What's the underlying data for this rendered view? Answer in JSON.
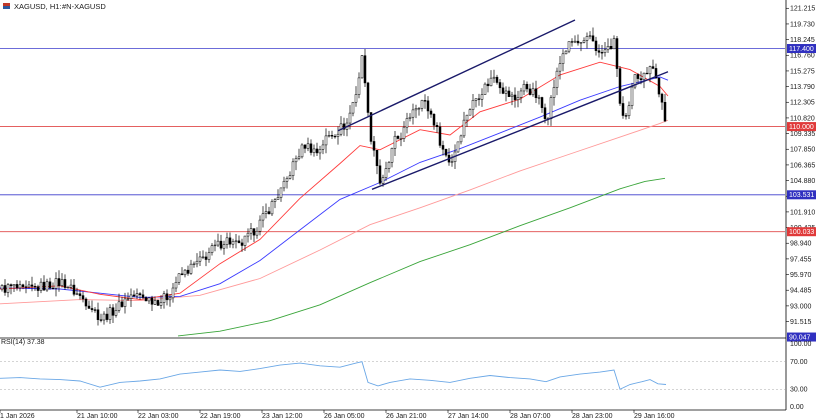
{
  "header": {
    "symbol": "XAGUSD, H1:",
    "description": "#N-XAGUSD",
    "icon_name": "symbol-flag-icon"
  },
  "colors": {
    "background": "#ffffff",
    "candle": "#000000",
    "ma_fast": "#ff3b3b",
    "ma_medium": "#3b3bff",
    "ma_slow": "#ff9a9a",
    "ma_long": "#3aa53a",
    "channel": "#1a1a6a",
    "hline_blue": "#3b3bcc",
    "hline_red": "#e04a4a",
    "rsi_line": "#6aa7e6",
    "tag_blue": "#3030c0",
    "tag_red": "#e03a3a"
  },
  "price_axis": {
    "ticks": [
      "121.215",
      "119.730",
      "118.245",
      "116.760",
      "115.275",
      "113.790",
      "112.305",
      "110.820",
      "109.335",
      "107.850",
      "106.365",
      "104.880",
      "103.395",
      "101.910",
      "100.425",
      "98.940",
      "97.455",
      "95.970",
      "94.485",
      "93.000",
      "91.515"
    ],
    "tagged_levels": [
      "117.400",
      "110.000",
      "103.531",
      "100.033",
      "90.047"
    ]
  },
  "time_axis": {
    "labels": [
      "1 Jan 2026",
      "21 Jan 10:00",
      "22 Jan 03:00",
      "22 Jan 19:00",
      "23 Jan 12:00",
      "26 Jan 05:00",
      "26 Jan 21:00",
      "27 Jan 14:00",
      "28 Jan 07:00",
      "28 Jan 23:00",
      "29 Jan 16:00"
    ]
  },
  "rsi": {
    "label": "RSI(14) 37.38",
    "axis_ticks": [
      "100.00",
      "70.00",
      "30.00",
      "0.00"
    ]
  },
  "chart_data": {
    "type": "candlestick",
    "symbol": "XAGUSD",
    "timeframe": "H1",
    "ylim": [
      90.05,
      122.0
    ],
    "horizontal_levels": [
      {
        "value": 117.4,
        "color": "blue"
      },
      {
        "value": 110.0,
        "color": "red"
      },
      {
        "value": 103.531,
        "color": "blue"
      },
      {
        "value": 100.033,
        "color": "red"
      }
    ],
    "close_path": [
      [
        0,
        94.6
      ],
      [
        12,
        94.8
      ],
      [
        22,
        94.4
      ],
      [
        35,
        94.7
      ],
      [
        48,
        95.0
      ],
      [
        62,
        95.3
      ],
      [
        75,
        94.2
      ],
      [
        88,
        93.2
      ],
      [
        100,
        91.8
      ],
      [
        110,
        92.4
      ],
      [
        118,
        93.0
      ],
      [
        128,
        94.0
      ],
      [
        140,
        93.9
      ],
      [
        150,
        93.6
      ],
      [
        160,
        93.5
      ],
      [
        168,
        94.0
      ],
      [
        176,
        95.5
      ],
      [
        188,
        96.5
      ],
      [
        200,
        97.3
      ],
      [
        212,
        98.4
      ],
      [
        225,
        99.3
      ],
      [
        238,
        98.6
      ],
      [
        248,
        99.6
      ],
      [
        260,
        101.0
      ],
      [
        272,
        102.8
      ],
      [
        284,
        104.5
      ],
      [
        294,
        106.8
      ],
      [
        304,
        108.3
      ],
      [
        316,
        107.6
      ],
      [
        326,
        109.0
      ],
      [
        336,
        109.6
      ],
      [
        346,
        110.3
      ],
      [
        356,
        113.6
      ],
      [
        362,
        117.0
      ],
      [
        368,
        109.8
      ],
      [
        374,
        107.5
      ],
      [
        380,
        104.2
      ],
      [
        386,
        106.0
      ],
      [
        394,
        108.6
      ],
      [
        402,
        109.4
      ],
      [
        412,
        111.8
      ],
      [
        422,
        112.5
      ],
      [
        432,
        110.8
      ],
      [
        442,
        107.8
      ],
      [
        450,
        106.5
      ],
      [
        458,
        109.0
      ],
      [
        466,
        111.3
      ],
      [
        474,
        112.6
      ],
      [
        484,
        113.8
      ],
      [
        494,
        114.9
      ],
      [
        504,
        113.2
      ],
      [
        514,
        112.6
      ],
      [
        524,
        113.9
      ],
      [
        536,
        112.8
      ],
      [
        546,
        110.8
      ],
      [
        554,
        114.3
      ],
      [
        562,
        117.0
      ],
      [
        572,
        118.1
      ],
      [
        582,
        117.6
      ],
      [
        590,
        118.7
      ],
      [
        598,
        116.8
      ],
      [
        606,
        117.3
      ],
      [
        614,
        118.0
      ],
      [
        620,
        111.0
      ],
      [
        626,
        110.5
      ],
      [
        634,
        115.2
      ],
      [
        642,
        114.6
      ],
      [
        650,
        116.2
      ],
      [
        656,
        114.2
      ],
      [
        661,
        112.0
      ],
      [
        666,
        108.9
      ]
    ],
    "ma_fast_path": [
      [
        0,
        94.6
      ],
      [
        60,
        94.9
      ],
      [
        100,
        94.1
      ],
      [
        140,
        93.6
      ],
      [
        180,
        94.2
      ],
      [
        220,
        97.0
      ],
      [
        260,
        99.3
      ],
      [
        300,
        103.2
      ],
      [
        340,
        106.5
      ],
      [
        360,
        108.2
      ],
      [
        380,
        107.8
      ],
      [
        420,
        109.7
      ],
      [
        450,
        109.2
      ],
      [
        480,
        111.4
      ],
      [
        520,
        112.6
      ],
      [
        560,
        114.9
      ],
      [
        600,
        116.1
      ],
      [
        630,
        115.4
      ],
      [
        660,
        113.8
      ],
      [
        668,
        112.9
      ]
    ],
    "ma_medium_path": [
      [
        0,
        94.7
      ],
      [
        60,
        94.6
      ],
      [
        100,
        94.2
      ],
      [
        140,
        93.8
      ],
      [
        180,
        93.9
      ],
      [
        220,
        95.1
      ],
      [
        260,
        97.3
      ],
      [
        300,
        100.2
      ],
      [
        340,
        103.1
      ],
      [
        380,
        104.7
      ],
      [
        420,
        106.6
      ],
      [
        460,
        107.9
      ],
      [
        500,
        109.4
      ],
      [
        540,
        110.9
      ],
      [
        580,
        112.5
      ],
      [
        620,
        113.8
      ],
      [
        660,
        114.7
      ],
      [
        668,
        114.4
      ]
    ],
    "ma_slow_path": [
      [
        0,
        93.2
      ],
      [
        80,
        93.6
      ],
      [
        140,
        93.5
      ],
      [
        200,
        94.0
      ],
      [
        260,
        95.6
      ],
      [
        320,
        98.3
      ],
      [
        370,
        100.7
      ],
      [
        420,
        102.3
      ],
      [
        470,
        104.0
      ],
      [
        520,
        105.8
      ],
      [
        570,
        107.4
      ],
      [
        620,
        109.0
      ],
      [
        660,
        110.3
      ],
      [
        668,
        110.6
      ]
    ],
    "ma_long_path": [
      [
        178,
        90.15
      ],
      [
        220,
        90.6
      ],
      [
        270,
        91.6
      ],
      [
        320,
        93.1
      ],
      [
        370,
        95.2
      ],
      [
        420,
        97.2
      ],
      [
        470,
        98.8
      ],
      [
        520,
        100.6
      ],
      [
        570,
        102.3
      ],
      [
        620,
        104.1
      ],
      [
        645,
        104.8
      ],
      [
        665,
        105.1
      ]
    ],
    "channel_lines": [
      {
        "start": [
          338,
          109.6
        ],
        "end": [
          575,
          120.1
        ]
      },
      {
        "start": [
          372,
          104.05
        ],
        "end": [
          668,
          115.2
        ]
      }
    ],
    "rsi_path": [
      [
        0,
        46
      ],
      [
        20,
        47
      ],
      [
        40,
        45
      ],
      [
        60,
        44
      ],
      [
        80,
        42
      ],
      [
        100,
        33
      ],
      [
        120,
        40
      ],
      [
        140,
        42
      ],
      [
        160,
        45
      ],
      [
        180,
        52
      ],
      [
        200,
        55
      ],
      [
        220,
        58
      ],
      [
        240,
        56
      ],
      [
        260,
        60
      ],
      [
        280,
        65
      ],
      [
        300,
        68
      ],
      [
        320,
        64
      ],
      [
        340,
        62
      ],
      [
        356,
        68
      ],
      [
        362,
        70
      ],
      [
        368,
        40
      ],
      [
        378,
        35
      ],
      [
        390,
        40
      ],
      [
        410,
        45
      ],
      [
        430,
        43
      ],
      [
        450,
        40
      ],
      [
        470,
        46
      ],
      [
        490,
        50
      ],
      [
        510,
        47
      ],
      [
        530,
        45
      ],
      [
        546,
        41
      ],
      [
        560,
        48
      ],
      [
        580,
        52
      ],
      [
        600,
        55
      ],
      [
        614,
        58
      ],
      [
        620,
        30
      ],
      [
        630,
        37
      ],
      [
        642,
        41
      ],
      [
        650,
        44
      ],
      [
        658,
        38
      ],
      [
        666,
        37
      ]
    ],
    "x_label_positions": [
      0,
      77,
      138,
      200,
      262,
      324,
      386,
      448,
      510,
      572,
      634
    ]
  }
}
